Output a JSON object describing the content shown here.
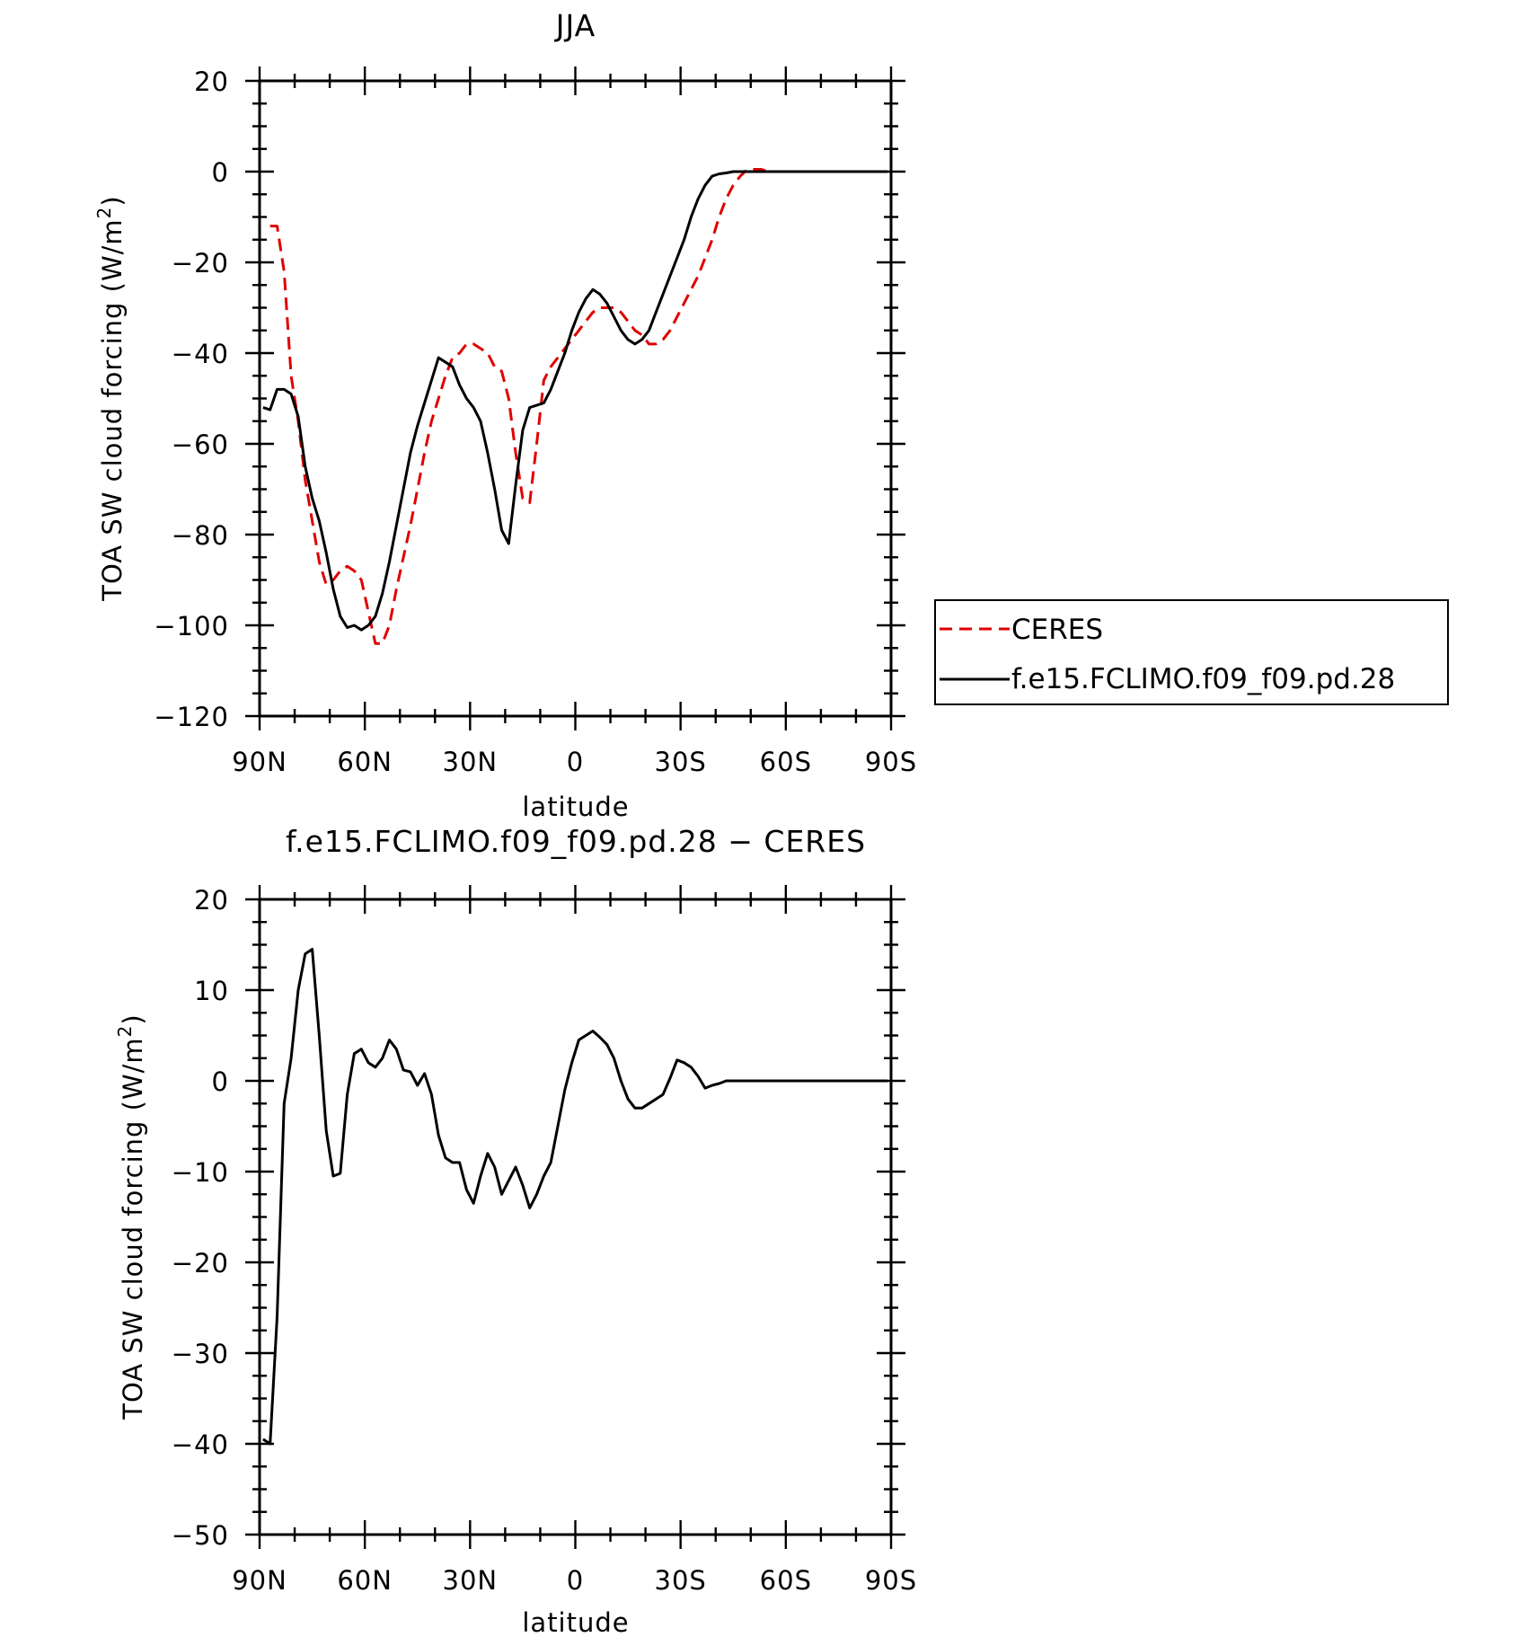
{
  "colors": {
    "ceres": "#e00000",
    "model": "#000000"
  },
  "chart_data": [
    {
      "type": "line",
      "title": "JJA",
      "xlabel": "latitude",
      "ylabel": "TOA SW cloud forcing (W/m",
      "ylabel_sup": "2",
      "ylabel_close": ")",
      "xlim": [
        90,
        -90
      ],
      "ylim": [
        -120,
        20
      ],
      "x_ticks": [
        90,
        60,
        30,
        0,
        -30,
        -60,
        -90
      ],
      "x_tick_labels": [
        "90N",
        "60N",
        "30N",
        "0",
        "30S",
        "60S",
        "90S"
      ],
      "y_ticks": [
        20,
        0,
        -20,
        -40,
        -60,
        -80,
        -100,
        -120
      ],
      "y_tick_labels": [
        "20",
        "0",
        "−20",
        "−40",
        "−60",
        "−80",
        "−100",
        "−120"
      ],
      "legend": {
        "position": "right",
        "entries": [
          "CERES",
          "f.e15.FCLIMO.f09_f09.pd.28"
        ]
      },
      "series": [
        {
          "name": "CERES",
          "color": "#e00000",
          "style": "dashed",
          "x": [
            87,
            85,
            83,
            81,
            79,
            77,
            75,
            73,
            71,
            69,
            67,
            65,
            63,
            61,
            59,
            57,
            55,
            53,
            51,
            49,
            47,
            45,
            43,
            41,
            39,
            37,
            35,
            33,
            31,
            29,
            27,
            25,
            23,
            21,
            19,
            17,
            15,
            13,
            11,
            9,
            7,
            5,
            3,
            1,
            -1,
            -3,
            -5,
            -7,
            -9,
            -11,
            -13,
            -15,
            -17,
            -19,
            -21,
            -23,
            -25,
            -27,
            -29,
            -31,
            -33,
            -35,
            -37,
            -39,
            -41,
            -43,
            -45,
            -47,
            -49,
            -51,
            -53,
            -55,
            -57,
            -59,
            -61,
            -63,
            -65,
            -67,
            -69,
            -71,
            -73,
            -75,
            -77,
            -79,
            -81,
            -83,
            -85,
            -87,
            -89
          ],
          "y": [
            -12,
            -12,
            -22,
            -45,
            -55,
            -68,
            -77,
            -86,
            -91,
            -90,
            -88,
            -87,
            -88,
            -90,
            -97,
            -104,
            -104,
            -100,
            -92,
            -85,
            -78,
            -70,
            -62,
            -55,
            -50,
            -45,
            -41,
            -40,
            -38,
            -38,
            -39,
            -40,
            -43,
            -44,
            -50,
            -62,
            -72,
            -73,
            -60,
            -46,
            -43,
            -41,
            -39,
            -37,
            -35,
            -33,
            -31,
            -30,
            -30,
            -30,
            -31,
            -33,
            -35,
            -36,
            -38,
            -38,
            -37,
            -35,
            -32,
            -29,
            -26,
            -23,
            -19,
            -15,
            -10,
            -6,
            -3,
            -1,
            0.5,
            0.5,
            0.5,
            0,
            0,
            0,
            0,
            0,
            0,
            0,
            0,
            0,
            0,
            0,
            0,
            0,
            0,
            0,
            0,
            0,
            0
          ]
        },
        {
          "name": "f.e15.FCLIMO.f09_f09.pd.28",
          "color": "#000000",
          "style": "solid",
          "x": [
            89,
            87,
            85,
            83,
            81,
            79,
            77,
            75,
            73,
            71,
            69,
            67,
            65,
            63,
            61,
            59,
            57,
            55,
            53,
            51,
            49,
            47,
            45,
            43,
            41,
            39,
            37,
            35,
            33,
            31,
            29,
            27,
            25,
            23,
            21,
            19,
            17,
            15,
            13,
            11,
            9,
            7,
            5,
            3,
            1,
            -1,
            -3,
            -5,
            -7,
            -9,
            -11,
            -13,
            -15,
            -17,
            -19,
            -21,
            -23,
            -25,
            -27,
            -29,
            -31,
            -33,
            -35,
            -37,
            -39,
            -41,
            -43,
            -45,
            -47,
            -49,
            -51,
            -53,
            -55,
            -57,
            -59,
            -61,
            -63,
            -65,
            -67,
            -69,
            -71,
            -73,
            -75,
            -77,
            -79,
            -81,
            -83,
            -85,
            -87,
            -89
          ],
          "y": [
            -52,
            -52.5,
            -48,
            -48,
            -49,
            -54,
            -65,
            -72,
            -77,
            -84,
            -92,
            -98,
            -100.5,
            -100,
            -101,
            -100,
            -98,
            -93,
            -86,
            -78,
            -70,
            -62,
            -56,
            -51,
            -46,
            -41,
            -42,
            -43,
            -47,
            -50,
            -52,
            -55,
            -62,
            -70,
            -79,
            -82,
            -69,
            -57,
            -52,
            -51.5,
            -51,
            -48,
            -44,
            -40,
            -35,
            -31,
            -28,
            -26,
            -27,
            -29,
            -32,
            -35,
            -37,
            -38,
            -37,
            -35,
            -31,
            -27,
            -23,
            -19,
            -15,
            -10,
            -6,
            -3,
            -1,
            -0.5,
            -0.3,
            0,
            0,
            0,
            0,
            0,
            0,
            0,
            0,
            0,
            0,
            0,
            0,
            0,
            0,
            0,
            0,
            0,
            0,
            0,
            0,
            0,
            0,
            0
          ]
        }
      ]
    },
    {
      "type": "line",
      "title": "f.e15.FCLIMO.f09_f09.pd.28 − CERES",
      "xlabel": "latitude",
      "ylabel": "TOA SW cloud forcing (W/m",
      "ylabel_sup": "2",
      "ylabel_close": ")",
      "xlim": [
        90,
        -90
      ],
      "ylim": [
        -50,
        20
      ],
      "x_ticks": [
        90,
        60,
        30,
        0,
        -30,
        -60,
        -90
      ],
      "x_tick_labels": [
        "90N",
        "60N",
        "30N",
        "0",
        "30S",
        "60S",
        "90S"
      ],
      "y_ticks": [
        20,
        10,
        0,
        -10,
        -20,
        -30,
        -40,
        -50
      ],
      "y_tick_labels": [
        "20",
        "10",
        "0",
        "−10",
        "−20",
        "−30",
        "−40",
        "−50"
      ],
      "series": [
        {
          "color": "#000000",
          "style": "solid",
          "x": [
            89,
            87,
            85,
            83,
            81,
            79,
            77,
            75,
            73,
            71,
            69,
            67,
            65,
            63,
            61,
            59,
            57,
            55,
            53,
            51,
            49,
            47,
            45,
            43,
            41,
            39,
            37,
            35,
            33,
            31,
            29,
            27,
            25,
            23,
            21,
            19,
            17,
            15,
            13,
            11,
            9,
            7,
            5,
            3,
            1,
            -1,
            -3,
            -5,
            -7,
            -9,
            -11,
            -13,
            -15,
            -17,
            -19,
            -21,
            -23,
            -25,
            -27,
            -29,
            -31,
            -33,
            -35,
            -37,
            -39,
            -41,
            -43,
            -45,
            -47,
            -49,
            -51,
            -53,
            -55,
            -57,
            -59,
            -61,
            -63,
            -65,
            -67,
            -69,
            -71,
            -73,
            -75,
            -77,
            -79,
            -81,
            -83,
            -85,
            -87,
            -89
          ],
          "y": [
            -39.5,
            -40,
            -26,
            -2.5,
            2.5,
            10,
            14,
            14.5,
            5,
            -5.5,
            -10.5,
            -10.2,
            -1.5,
            3,
            3.5,
            2,
            1.5,
            2.5,
            4.5,
            3.5,
            1.2,
            1,
            -0.5,
            0.8,
            -1.5,
            -6,
            -8.5,
            -9,
            -9,
            -12,
            -13.5,
            -10.5,
            -8,
            -9.5,
            -12.5,
            -11,
            -9.5,
            -11.5,
            -14,
            -12.5,
            -10.5,
            -9,
            -5,
            -1,
            2,
            4.5,
            5,
            5.5,
            4.8,
            4,
            2.5,
            0,
            -2,
            -3,
            -3,
            -2.5,
            -2,
            -1.5,
            0.3,
            2.3,
            2,
            1.5,
            0.5,
            -0.8,
            -0.5,
            -0.3,
            0,
            0,
            0,
            0,
            0,
            0,
            0,
            0,
            0,
            0,
            0,
            0,
            0,
            0,
            0,
            0,
            0,
            0,
            0,
            0,
            0,
            0,
            0,
            0
          ]
        }
      ]
    }
  ]
}
